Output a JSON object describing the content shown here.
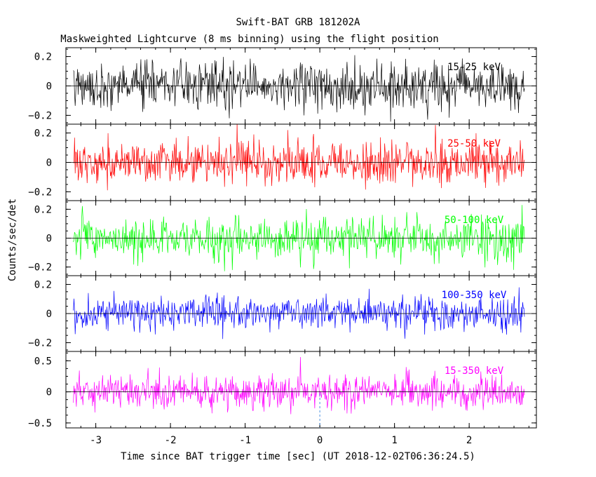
{
  "title": "Swift-BAT GRB 181202A",
  "subtitle": "Maskweighted Lightcurve (8 ms binning) using the flight position",
  "chart_data": {
    "type": "line",
    "title": "Swift-BAT GRB 181202A",
    "subtitle": "Maskweighted Lightcurve (8 ms binning) using the flight position",
    "xlabel": "Time since BAT trigger time [sec] (UT 2018-12-02T06:36:24.5)",
    "ylabel": "Counts/sec/det",
    "xlim": [
      -3.4,
      2.9
    ],
    "x_range": [
      -3.3,
      2.75
    ],
    "bin_width": 0.008,
    "x_ticks": [
      "-3",
      "-2",
      "-1",
      "0",
      "1",
      "2"
    ],
    "x_tick_values": [
      -3,
      -2,
      -1,
      0,
      1,
      2
    ],
    "trigger_marker_x": 0,
    "panels": [
      {
        "name": "15-25 keV",
        "color": "#000000",
        "ylim": [
          -0.26,
          0.26
        ],
        "y_ticks": [
          "0.2",
          "0",
          "−0.2"
        ],
        "y_tick_values": [
          0.2,
          0,
          -0.2
        ],
        "noise_sigma": 0.085
      },
      {
        "name": "25-50 keV",
        "color": "#ff0000",
        "ylim": [
          -0.26,
          0.26
        ],
        "y_ticks": [
          "0.2",
          "0",
          "−0.2"
        ],
        "y_tick_values": [
          0.2,
          0,
          -0.2
        ],
        "noise_sigma": 0.075
      },
      {
        "name": "50-100 keV",
        "color": "#00ff00",
        "ylim": [
          -0.26,
          0.26
        ],
        "y_ticks": [
          "0.2",
          "0",
          "−0.2"
        ],
        "y_tick_values": [
          0.2,
          0,
          -0.2
        ],
        "noise_sigma": 0.075
      },
      {
        "name": "100-350 keV",
        "color": "#0000ff",
        "ylim": [
          -0.26,
          0.26
        ],
        "y_ticks": [
          "0.2",
          "0",
          "−0.2"
        ],
        "y_tick_values": [
          0.2,
          0,
          -0.2
        ],
        "noise_sigma": 0.06
      },
      {
        "name": "15-350 keV",
        "color": "#ff00ff",
        "ylim": [
          -0.58,
          0.65
        ],
        "y_ticks": [
          "0.5",
          "0",
          "−0.5"
        ],
        "y_tick_values": [
          0.5,
          0,
          -0.5
        ],
        "noise_sigma": 0.14
      }
    ]
  }
}
